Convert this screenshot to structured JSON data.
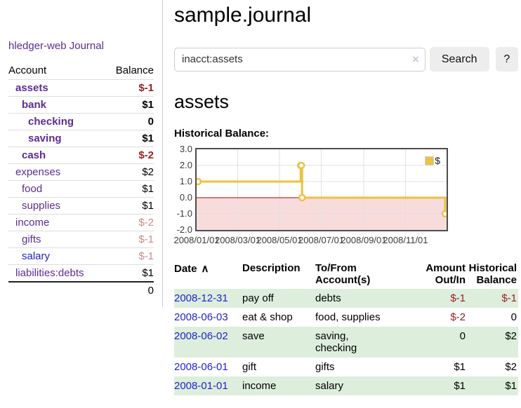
{
  "app": {
    "brand": "hledger-web"
  },
  "nav": {
    "journal": "Journal"
  },
  "sidebar": {
    "columns": {
      "account": "Account",
      "balance": "Balance"
    },
    "accounts": [
      {
        "name": "assets",
        "balance": "$-1"
      },
      {
        "name": "bank",
        "balance": "$1"
      },
      {
        "name": "checking",
        "balance": "0"
      },
      {
        "name": "saving",
        "balance": "$1"
      },
      {
        "name": "cash",
        "balance": "$-2"
      },
      {
        "name": "expenses",
        "balance": "$2"
      },
      {
        "name": "food",
        "balance": "$1"
      },
      {
        "name": "supplies",
        "balance": "$1"
      },
      {
        "name": "income",
        "balance": "$-2"
      },
      {
        "name": "gifts",
        "balance": "$-1"
      },
      {
        "name": "salary",
        "balance": "$-1"
      },
      {
        "name": "liabilities:debts",
        "balance": "$1"
      }
    ],
    "total": "0"
  },
  "header": {
    "title": "sample.journal"
  },
  "search": {
    "value": "inacct:assets",
    "clear_icon": "×",
    "button_label": "Search",
    "help_label": "?"
  },
  "account_page": {
    "heading": "assets",
    "chart_title": "Historical Balance:"
  },
  "chart_data": {
    "type": "line",
    "title": "Historical Balance:",
    "step": true,
    "series": [
      {
        "name": "$",
        "points": [
          {
            "x": "2008-01-01",
            "y": 1
          },
          {
            "x": "2008-06-01",
            "y": 2
          },
          {
            "x": "2008-06-02",
            "y": 2
          },
          {
            "x": "2008-06-03",
            "y": 0
          },
          {
            "x": "2008-12-31",
            "y": -1
          }
        ]
      }
    ],
    "xrange": [
      "2008-01-01",
      "2008-12-31"
    ],
    "ylim": [
      -2,
      3
    ],
    "yticks": [
      3.0,
      2.0,
      1.0,
      0.0,
      -1.0,
      -2.0
    ],
    "xticks": [
      "2008/01/01",
      "2008/03/01",
      "2008/05/01",
      "2008/07/01",
      "2008/09/01",
      "2008/11/01"
    ],
    "legend": {
      "label": "$",
      "position": "top-right"
    },
    "grid": true,
    "line_color": "#edc240",
    "negative_region_fill": "#f8dcdc",
    "zero_line_color": "#aa0000"
  },
  "transactions": {
    "columns": {
      "date": "Date",
      "description": "Description",
      "accounts": "To/From\nAccount(s)",
      "amount": "Amount\nOut/In",
      "balance": "Historical\nBalance"
    },
    "sort_asc_icon": "∧",
    "rows": [
      {
        "date": "2008-12-31",
        "description": "pay off",
        "accounts": "debts",
        "amount": "$-1",
        "balance": "$-1"
      },
      {
        "date": "2008-06-03",
        "description": "eat & shop",
        "accounts": "food, supplies",
        "amount": "$-2",
        "balance": "0"
      },
      {
        "date": "2008-06-02",
        "description": "save",
        "accounts": "saving,\nchecking",
        "amount": "0",
        "balance": "$2"
      },
      {
        "date": "2008-06-01",
        "description": "gift",
        "accounts": "gifts",
        "amount": "$1",
        "balance": "$2"
      },
      {
        "date": "2008-01-01",
        "description": "income",
        "accounts": "salary",
        "amount": "$1",
        "balance": "$1"
      }
    ]
  },
  "colors": {
    "link_purple": "#5c2d91",
    "link_blue": "#2222cc",
    "negative_strong": "#9b1c1c",
    "negative_soft": "#c98c8c",
    "row_stripe_green": "#ddeedd",
    "chart_line": "#edc240",
    "chart_negative_fill": "#f8dcdc",
    "chart_zero_line": "#aa0000",
    "button_bg": "#ededed"
  }
}
